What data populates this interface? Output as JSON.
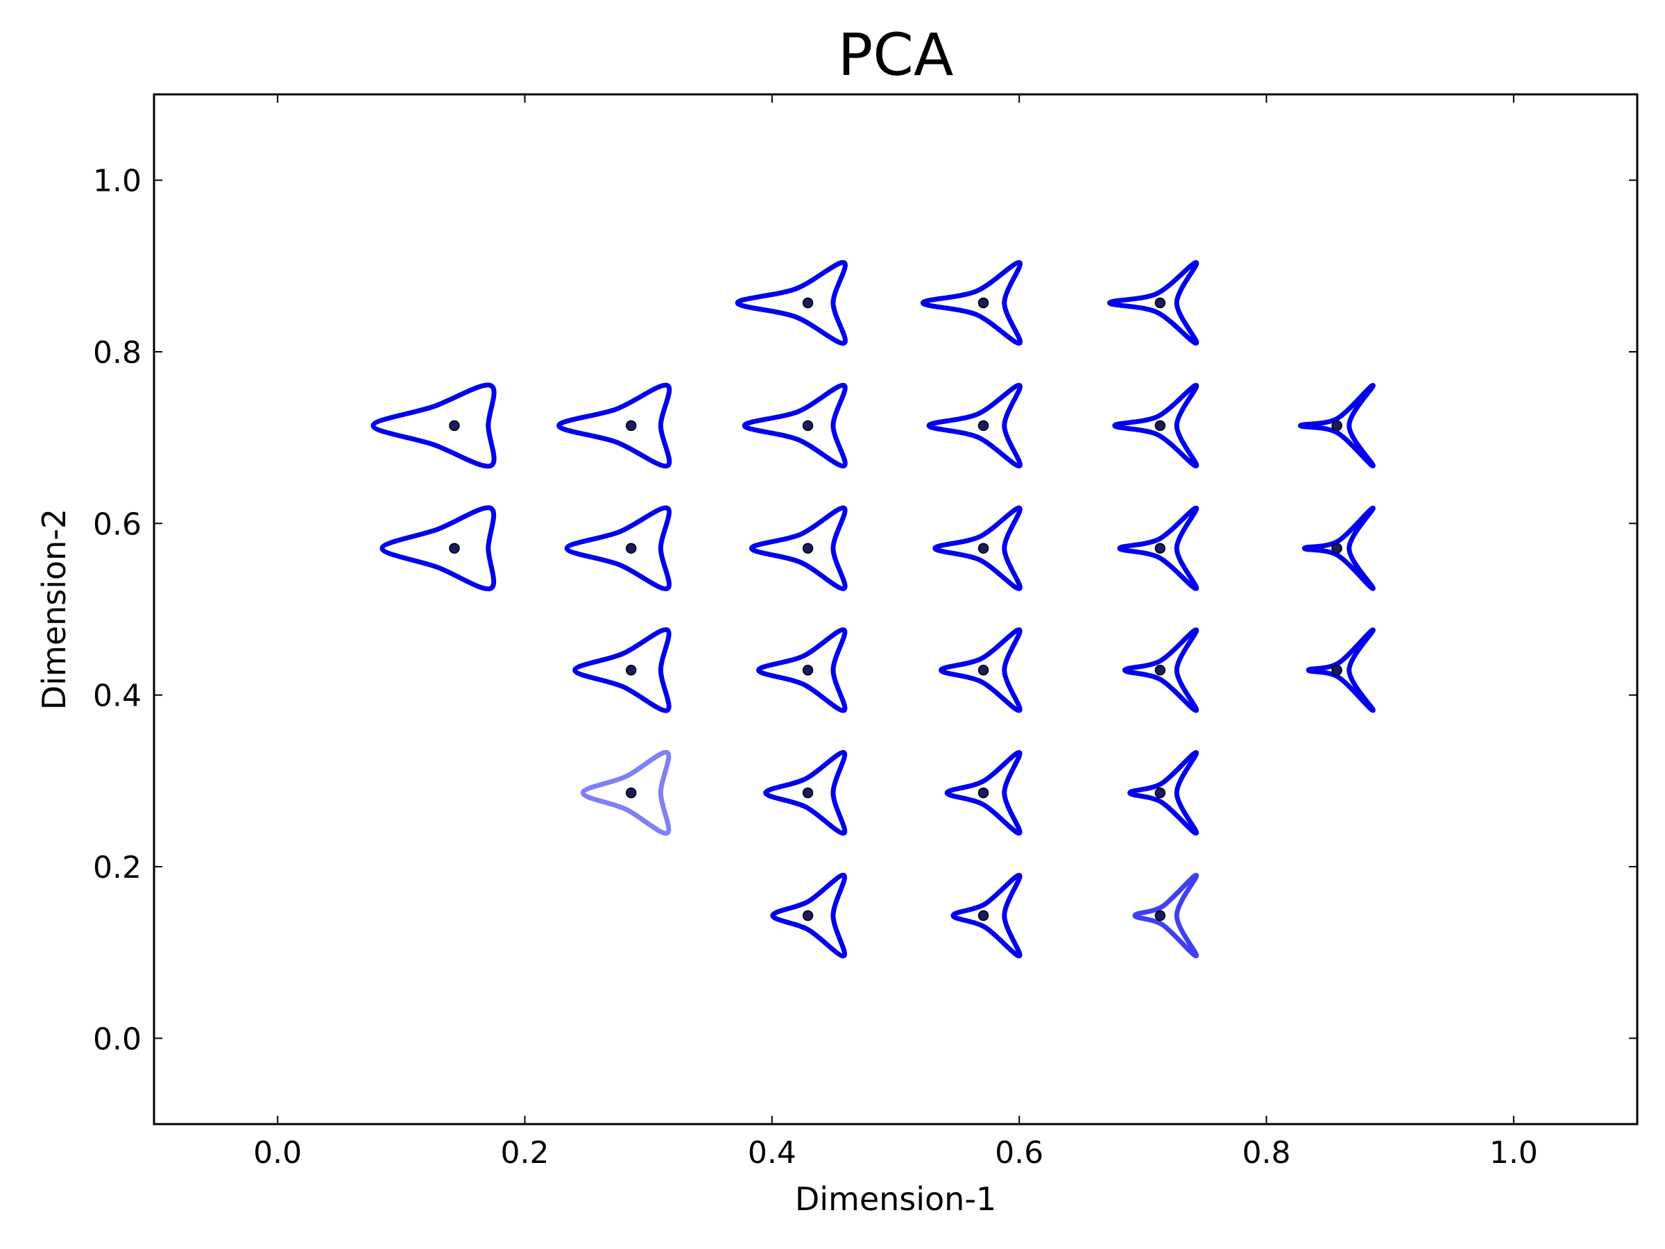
{
  "chart_data": {
    "type": "scatter",
    "title": "PCA",
    "xlabel": "Dimension-1",
    "ylabel": "Dimension-2",
    "xlim": [
      -0.1,
      1.1
    ],
    "ylim": [
      -0.1,
      1.1
    ],
    "xticks": [
      0.0,
      0.2,
      0.4,
      0.6,
      0.8,
      1.0
    ],
    "yticks": [
      0.0,
      0.2,
      0.4,
      0.6,
      0.8,
      1.0
    ],
    "xtick_labels": [
      "0.0",
      "0.2",
      "0.4",
      "0.6",
      "0.8",
      "1.0"
    ],
    "ytick_labels": [
      "0.0",
      "0.2",
      "0.4",
      "0.6",
      "0.8",
      "1.0"
    ],
    "grid": false,
    "marker_color": "#0000ee",
    "point_color": "#1a1a5e",
    "points": [
      {
        "x": 0.429,
        "y": 0.857,
        "i": 2,
        "j": 6,
        "opacity": 1
      },
      {
        "x": 0.571,
        "y": 0.857,
        "i": 3,
        "j": 6,
        "opacity": 1
      },
      {
        "x": 0.714,
        "y": 0.857,
        "i": 4,
        "j": 6,
        "opacity": 1
      },
      {
        "x": 0.143,
        "y": 0.714,
        "i": 0,
        "j": 5,
        "opacity": 1
      },
      {
        "x": 0.286,
        "y": 0.714,
        "i": 1,
        "j": 5,
        "opacity": 1
      },
      {
        "x": 0.429,
        "y": 0.714,
        "i": 2,
        "j": 5,
        "opacity": 1
      },
      {
        "x": 0.571,
        "y": 0.714,
        "i": 3,
        "j": 5,
        "opacity": 1
      },
      {
        "x": 0.714,
        "y": 0.714,
        "i": 4,
        "j": 5,
        "opacity": 1
      },
      {
        "x": 0.857,
        "y": 0.714,
        "i": 5,
        "j": 5,
        "opacity": 1
      },
      {
        "x": 0.143,
        "y": 0.571,
        "i": 0,
        "j": 4,
        "opacity": 1
      },
      {
        "x": 0.286,
        "y": 0.571,
        "i": 1,
        "j": 4,
        "opacity": 1
      },
      {
        "x": 0.429,
        "y": 0.571,
        "i": 2,
        "j": 4,
        "opacity": 1
      },
      {
        "x": 0.571,
        "y": 0.571,
        "i": 3,
        "j": 4,
        "opacity": 1
      },
      {
        "x": 0.714,
        "y": 0.571,
        "i": 4,
        "j": 4,
        "opacity": 1
      },
      {
        "x": 0.857,
        "y": 0.571,
        "i": 5,
        "j": 4,
        "opacity": 1
      },
      {
        "x": 0.286,
        "y": 0.429,
        "i": 1,
        "j": 3,
        "opacity": 1
      },
      {
        "x": 0.429,
        "y": 0.429,
        "i": 2,
        "j": 3,
        "opacity": 1
      },
      {
        "x": 0.571,
        "y": 0.429,
        "i": 3,
        "j": 3,
        "opacity": 1
      },
      {
        "x": 0.714,
        "y": 0.429,
        "i": 4,
        "j": 3,
        "opacity": 1
      },
      {
        "x": 0.857,
        "y": 0.429,
        "i": 5,
        "j": 3,
        "opacity": 1
      },
      {
        "x": 0.286,
        "y": 0.286,
        "i": 1,
        "j": 2,
        "opacity": 0.5
      },
      {
        "x": 0.429,
        "y": 0.286,
        "i": 2,
        "j": 2,
        "opacity": 1
      },
      {
        "x": 0.571,
        "y": 0.286,
        "i": 3,
        "j": 2,
        "opacity": 1
      },
      {
        "x": 0.714,
        "y": 0.286,
        "i": 4,
        "j": 2,
        "opacity": 1
      },
      {
        "x": 0.429,
        "y": 0.143,
        "i": 2,
        "j": 1,
        "opacity": 1
      },
      {
        "x": 0.571,
        "y": 0.143,
        "i": 3,
        "j": 1,
        "opacity": 1
      },
      {
        "x": 0.714,
        "y": 0.143,
        "i": 4,
        "j": 1,
        "opacity": 0.75
      }
    ]
  }
}
